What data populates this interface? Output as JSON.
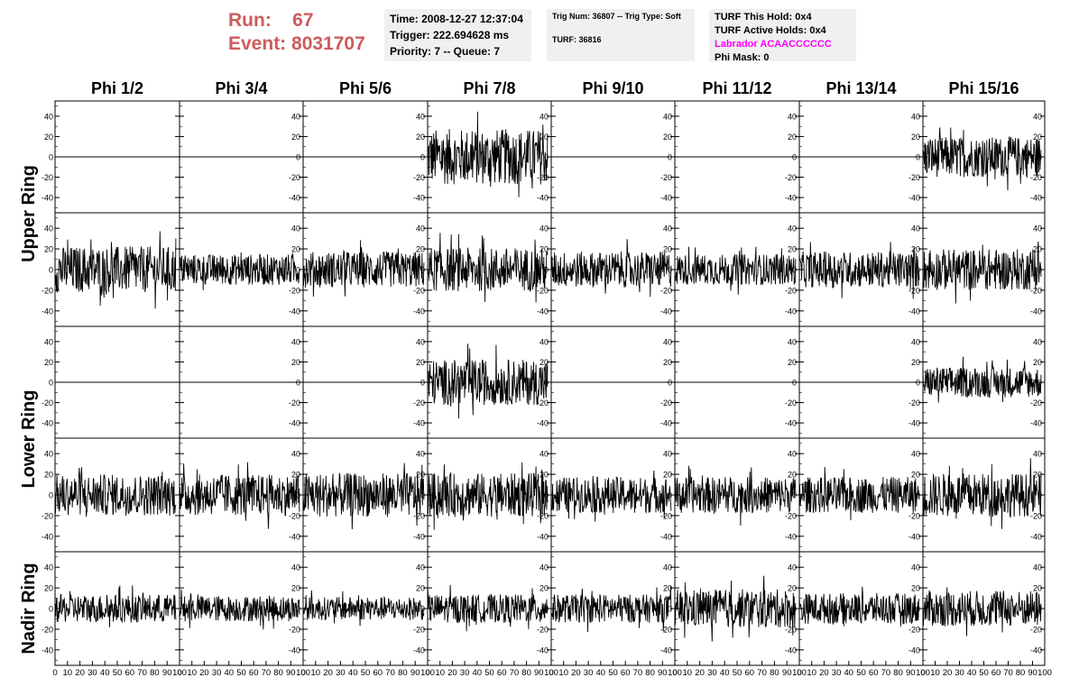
{
  "header": {
    "run_label": "Run:",
    "run_value": "67",
    "event_label": "Event:",
    "event_value": "8031707",
    "time": "Time: 2008-12-27 12:37:04",
    "trigger": "Trigger: 222.694628 ms",
    "priority": "Priority: 7 -- Queue: 7",
    "trig_num": "Trig Num: 36807 -- Trig Type: Soft",
    "turf": "TURF: 36816",
    "turf_this_hold": "TURF This Hold: 0x4",
    "turf_active_holds": "TURF Active Holds: 0x4",
    "labrador": "Labrador ACAACCCCCC",
    "phi_mask": "Phi Mask: 0"
  },
  "colors": {
    "run_text": "#cd5c5c",
    "labrador_text": "#ff00ff",
    "info_bg": "#f0f0f0",
    "trace": "#000000"
  },
  "chart_data": {
    "type": "line",
    "columns": [
      "Phi 1/2",
      "Phi 3/4",
      "Phi 5/6",
      "Phi 7/8",
      "Phi 9/10",
      "Phi 11/12",
      "Phi 13/14",
      "Phi 15/16"
    ],
    "ring_labels": [
      "Upper Ring",
      "Lower Ring",
      "Nadir Ring"
    ],
    "rows": [
      {
        "active": [
          false,
          false,
          false,
          true,
          false,
          false,
          false,
          true
        ],
        "amplitude": [
          0,
          0,
          0,
          22,
          0,
          0,
          0,
          16
        ]
      },
      {
        "active": [
          true,
          true,
          true,
          true,
          true,
          true,
          true,
          true
        ],
        "amplitude": [
          18,
          12,
          14,
          17,
          14,
          12,
          14,
          16
        ]
      },
      {
        "active": [
          false,
          false,
          false,
          true,
          false,
          false,
          false,
          true
        ],
        "amplitude": [
          0,
          0,
          0,
          18,
          0,
          0,
          0,
          12
        ]
      },
      {
        "active": [
          true,
          true,
          true,
          true,
          true,
          true,
          true,
          true
        ],
        "amplitude": [
          16,
          16,
          17,
          17,
          14,
          14,
          14,
          17
        ]
      },
      {
        "active": [
          true,
          true,
          true,
          true,
          true,
          true,
          true,
          true
        ],
        "amplitude": [
          11,
          10,
          9,
          11,
          11,
          15,
          12,
          14
        ]
      }
    ],
    "x_range": [
      0,
      100
    ],
    "y_range": [
      -55,
      55
    ],
    "x_ticks": [
      0,
      10,
      20,
      30,
      40,
      50,
      60,
      70,
      80,
      90,
      100
    ],
    "y_ticks": [
      -40,
      -20,
      0,
      20,
      40
    ],
    "samples": 260
  }
}
